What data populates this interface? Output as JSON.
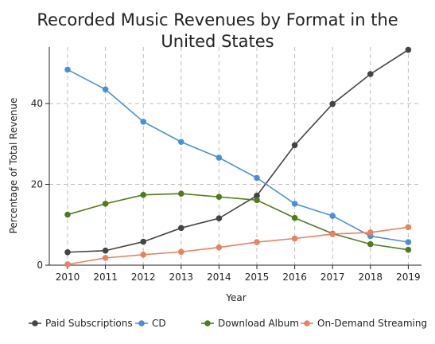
{
  "chart_data": {
    "type": "line",
    "title": "Recorded Music Revenues by Format in the United States",
    "xlabel": "Year",
    "ylabel": "Percentage of Total Revenue",
    "ylim": [
      0,
      54
    ],
    "yticks": [
      "0",
      "20",
      "40"
    ],
    "grid": {
      "vertical": "dashed",
      "horizontal": "dashed"
    },
    "legend_position": "bottom",
    "x": [
      "2010",
      "2011",
      "2012",
      "2013",
      "2014",
      "2015",
      "2016",
      "2017",
      "2018",
      "2019"
    ],
    "series": [
      {
        "name": "Paid Subscriptions",
        "color": "#444444",
        "values": [
          3.2,
          3.6,
          5.8,
          9.2,
          11.6,
          17.2,
          29.7,
          39.9,
          47.3,
          53.3
        ]
      },
      {
        "name": "CD",
        "color": "#4a90d9",
        "values": [
          48.4,
          43.5,
          35.5,
          30.5,
          26.6,
          21.6,
          15.2,
          12.2,
          7.2,
          5.7
        ]
      },
      {
        "name": "Download Album",
        "color": "#4f7d1c",
        "values": [
          12.5,
          15.2,
          17.4,
          17.7,
          16.9,
          16.1,
          11.7,
          7.8,
          5.2,
          3.8
        ]
      },
      {
        "name": "On-Demand Streaming",
        "color": "#e8825f",
        "values": [
          0.2,
          1.8,
          2.6,
          3.3,
          4.4,
          5.7,
          6.6,
          7.7,
          8.1,
          9.4
        ]
      }
    ]
  }
}
